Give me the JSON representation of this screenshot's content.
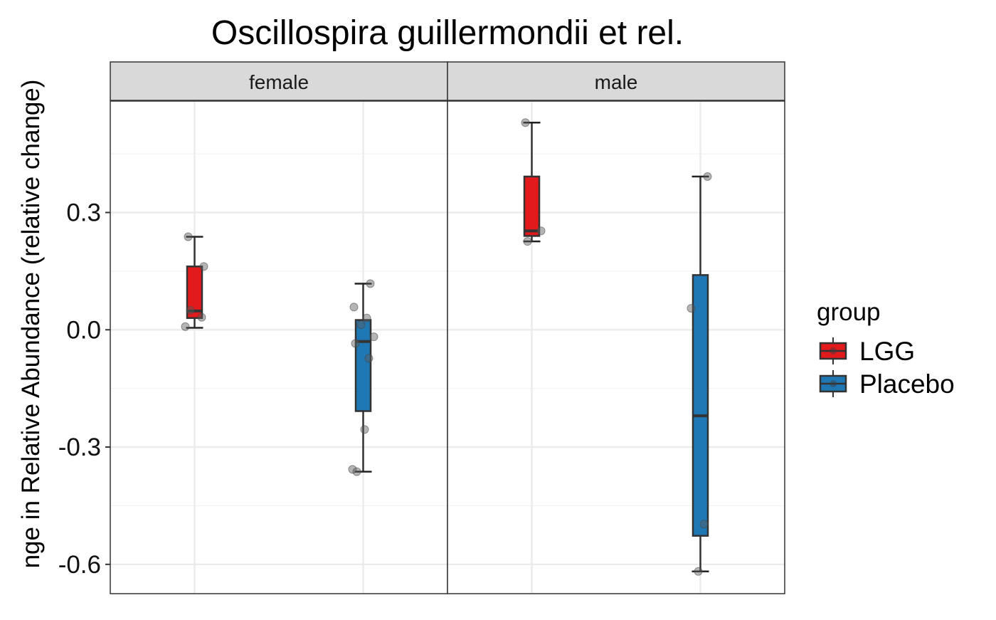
{
  "chart_data": {
    "type": "boxplot",
    "title": "Oscillospira guillermondii et rel.",
    "xlabel": "",
    "ylabel": "nge in Relative Abundance (relative change)",
    "ylim": [
      -0.675,
      0.585
    ],
    "yticks": [
      {
        "value": 0.3,
        "label": "0.3"
      },
      {
        "value": 0.0,
        "label": "0.0"
      },
      {
        "value": -0.3,
        "label": "-0.3"
      },
      {
        "value": -0.6,
        "label": "-0.6"
      }
    ],
    "grid": true,
    "legend": {
      "title": "group",
      "placement": "right",
      "entries": [
        {
          "label": "LGG",
          "color": "#e31a1c"
        },
        {
          "label": "Placebo",
          "color": "#1f78b4"
        }
      ]
    },
    "facets": [
      {
        "label": "female",
        "boxes": [
          {
            "group": "LGG",
            "whisker_low": 0.005,
            "q1": 0.03,
            "median": 0.048,
            "q3": 0.162,
            "whisker_high": 0.238,
            "points": [
              0.238,
              0.162,
              0.05,
              0.032,
              0.008
            ]
          },
          {
            "group": "Placebo",
            "whisker_low": -0.363,
            "q1": -0.208,
            "median": -0.03,
            "q3": 0.025,
            "whisker_high": 0.118,
            "points": [
              0.118,
              0.058,
              0.03,
              0.013,
              -0.018,
              -0.035,
              -0.073,
              -0.255,
              -0.357,
              -0.363
            ]
          }
        ]
      },
      {
        "label": "male",
        "boxes": [
          {
            "group": "LGG",
            "whisker_low": 0.226,
            "q1": 0.24,
            "median": 0.253,
            "q3": 0.392,
            "whisker_high": 0.53,
            "points": [
              0.53,
              0.253,
              0.226
            ]
          },
          {
            "group": "Placebo",
            "whisker_low": -0.618,
            "q1": -0.527,
            "median": -0.22,
            "q3": 0.14,
            "whisker_high": 0.392,
            "points": [
              0.392,
              0.055,
              -0.497,
              -0.618
            ]
          }
        ]
      }
    ]
  }
}
